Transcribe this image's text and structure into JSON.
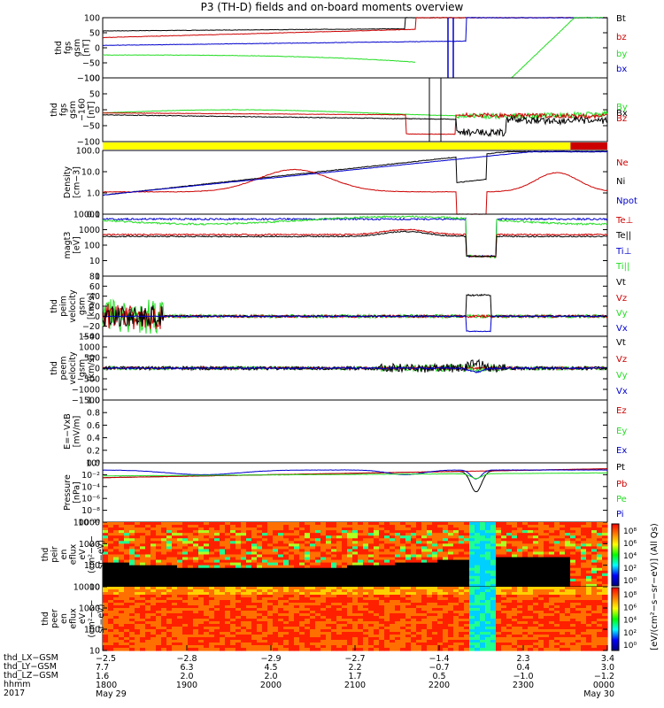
{
  "title": "P3 (TH-D) fields and on-board moments overview",
  "colors": {
    "black": "#000000",
    "red": "#cc0000",
    "green": "#22dd22",
    "blue": "#0000cc",
    "yellow": "#ffff00"
  },
  "chart_data": [
    {
      "type": "line",
      "id": "fgs",
      "ylabel": [
        "thd",
        "fgs",
        "gsm",
        "[nT]"
      ],
      "yticks": [
        "100",
        "50",
        "0",
        "−50",
        "−100"
      ],
      "ylim": [
        -100,
        100
      ],
      "legend": [
        "Bt",
        "bz",
        "by",
        "bx"
      ],
      "series_colors": [
        "black",
        "red",
        "green",
        "blue"
      ]
    },
    {
      "type": "line",
      "id": "fgs_lmn",
      "ylabel": [
        "thd",
        "fgs",
        "gsm",
        "−160",
        "[nT]"
      ],
      "yticks": [
        "100",
        "50",
        "0",
        "−50",
        "−100"
      ],
      "ylim": [
        -120,
        120
      ],
      "legend": [
        "By",
        "Bx",
        "Bz"
      ],
      "series_colors": [
        "green",
        "black",
        "red"
      ]
    },
    {
      "type": "bar",
      "id": "mode_bar",
      "segments": [
        {
          "from": 0,
          "to": 0.927,
          "color": "yellow"
        },
        {
          "from": 0.927,
          "to": 1,
          "color": "red"
        }
      ]
    },
    {
      "type": "line",
      "id": "density",
      "scale": "log",
      "ylabel": [
        "Density",
        "[cm−3]"
      ],
      "yticks": [
        "100.0",
        "10.0",
        "1.0",
        "0.1"
      ],
      "legend": [
        "Ne",
        "Ni",
        "Npot"
      ],
      "series_colors": [
        "red",
        "black",
        "blue"
      ]
    },
    {
      "type": "line",
      "id": "temp",
      "scale": "log",
      "ylabel": [
        "magt3",
        "[eV]"
      ],
      "yticks": [
        "10000",
        "1000",
        "100",
        "10",
        "1"
      ],
      "legend": [
        "Te⊥",
        "Te||",
        "Ti⊥",
        "Ti||"
      ],
      "series_colors": [
        "red",
        "black",
        "blue",
        "green"
      ]
    },
    {
      "type": "line",
      "id": "peim_v",
      "ylabel": [
        "thd",
        "peim",
        "velocity",
        "gsm",
        "[km/s]"
      ],
      "yticks": [
        "80",
        "60",
        "40",
        "20",
        "0",
        "−20",
        "−40"
      ],
      "ylim": [
        -40,
        80
      ],
      "legend": [
        "Vt",
        "Vz",
        "Vy",
        "Vx"
      ],
      "series_colors": [
        "black",
        "red",
        "green",
        "blue"
      ]
    },
    {
      "type": "line",
      "id": "peem_v",
      "ylabel": [
        "thd",
        "peem",
        "velocity",
        "gsm",
        "[km/s]"
      ],
      "yticks": [
        "1500",
        "1000",
        "500",
        "0",
        "−500",
        "−1000",
        "−1500"
      ],
      "ylim": [
        -1500,
        1500
      ],
      "legend": [
        "Vt",
        "Vz",
        "Vy",
        "Vx"
      ],
      "series_colors": [
        "black",
        "red",
        "green",
        "blue"
      ]
    },
    {
      "type": "line",
      "id": "efield",
      "ylabel": [
        "E=−VxB",
        "[mV/m]"
      ],
      "yticks": [
        "1.0",
        "0.8",
        "0.6",
        "0.4",
        "0.2",
        "0.0"
      ],
      "ylim": [
        0,
        1
      ],
      "legend": [
        "Ez",
        "Ey",
        "Ex"
      ],
      "series_colors": [
        "red",
        "green",
        "blue"
      ]
    },
    {
      "type": "line",
      "id": "pressure",
      "scale": "log",
      "ylabel": [
        "Pressure",
        "[nPa]"
      ],
      "yticks": [
        "10⁰",
        "10⁻²",
        "10⁻⁴",
        "10⁻⁶",
        "10⁻⁸",
        "10⁻¹⁰"
      ],
      "legend": [
        "Pt",
        "Pb",
        "Pe",
        "Pi"
      ],
      "series_colors": [
        "black",
        "red",
        "green",
        "blue"
      ]
    },
    {
      "type": "heatmap",
      "id": "peir_en",
      "ylabel": [
        "thd",
        "peir",
        "en",
        "eflux",
        "eV",
        "(cm²−s−",
        "sr−eV)"
      ],
      "yticks": [
        "10000",
        "1000",
        "100",
        "10"
      ]
    },
    {
      "type": "heatmap",
      "id": "peer_en",
      "ylabel": [
        "thd",
        "peer",
        "en",
        "eflux",
        "eV",
        "(cm²−s−",
        "sr−eV)"
      ],
      "yticks": [
        "10000",
        "1000",
        "100",
        "10"
      ]
    }
  ],
  "colorbar": {
    "label": "[eV/(cm²−s−sr−eV)] (All Qs)",
    "ticks_top": [
      "10⁸",
      "10⁶",
      "10⁴",
      "10²",
      "10⁰"
    ],
    "ticks_bottom": [
      "10⁸",
      "10⁶",
      "10⁴",
      "10²",
      "10⁰"
    ]
  },
  "x_axis": {
    "row_labels": [
      "thd_LX−GSM",
      "thd_LY−GSM",
      "thd_LZ−GSM",
      "hhmm",
      "2017"
    ],
    "columns": [
      {
        "lx": "−2.5",
        "ly": "7.7",
        "lz": "1.6",
        "hhmm": "1800",
        "date": "May 29"
      },
      {
        "lx": "−2.8",
        "ly": "6.3",
        "lz": "2.0",
        "hhmm": "1900",
        "date": ""
      },
      {
        "lx": "−2.9",
        "ly": "4.5",
        "lz": "2.0",
        "hhmm": "2000",
        "date": ""
      },
      {
        "lx": "−2.7",
        "ly": "2.2",
        "lz": "1.7",
        "hhmm": "2100",
        "date": ""
      },
      {
        "lx": "−1.4",
        "ly": "−0.7",
        "lz": "0.5",
        "hhmm": "2200",
        "date": ""
      },
      {
        "lx": "2.3",
        "ly": "0.4",
        "lz": "−1.0",
        "hhmm": "2300",
        "date": ""
      },
      {
        "lx": "3.4",
        "ly": "3.0",
        "lz": "−1.2",
        "hhmm": "0000",
        "date": "May 30"
      }
    ]
  }
}
